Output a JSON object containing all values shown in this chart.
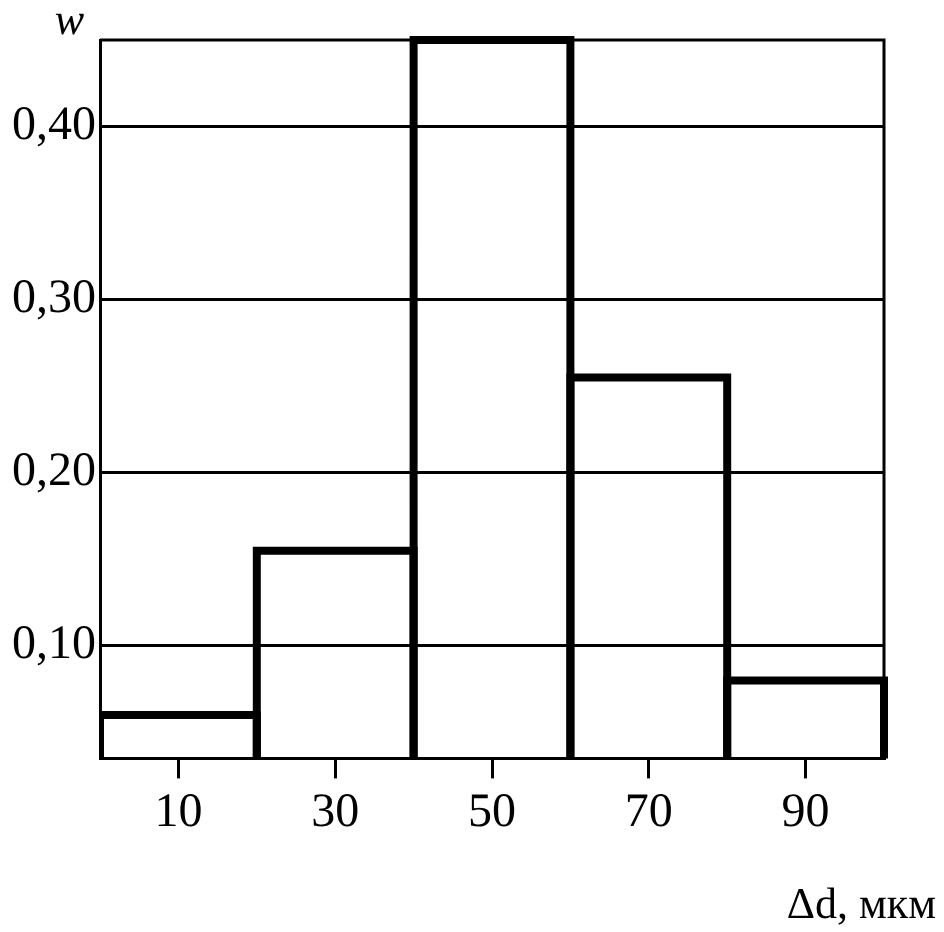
{
  "chart_data": {
    "type": "histogram",
    "xlabel": "Δd, мкм",
    "ylabel": "w",
    "bins": [
      0,
      20,
      40,
      60,
      80,
      100
    ],
    "values": [
      0.06,
      0.155,
      0.45,
      0.255,
      0.08
    ],
    "color": "#000000",
    "xlim": [
      0,
      100
    ],
    "xticks": [
      10,
      30,
      50,
      70,
      90
    ],
    "ylim": [
      0.035,
      0.45
    ],
    "yticks": [
      {
        "value": 0.1,
        "label": "0,10"
      },
      {
        "value": 0.2,
        "label": "0,20"
      },
      {
        "value": 0.3,
        "label": "0,30"
      },
      {
        "value": 0.4,
        "label": "0,40"
      }
    ],
    "grid": "y"
  }
}
